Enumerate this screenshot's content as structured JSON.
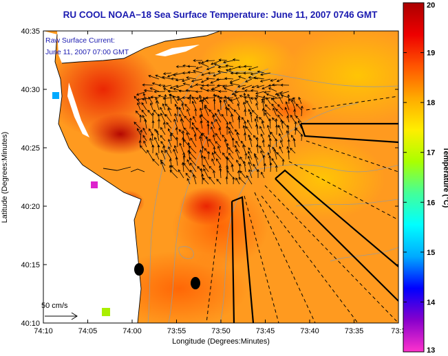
{
  "title": "RU COOL  NOAA−18  Sea Surface Temperature:  June 11, 2007 0746 GMT",
  "current_inset": {
    "line1": "Raw Surface Current:",
    "line2": "June 11, 2007 07:00 GMT"
  },
  "scale_label": "50 cm/s",
  "axes": {
    "xlabel": "Longitude (Degrees:Minutes)",
    "ylabel": "Latitude (Degrees:Minutes)",
    "x_ticks": [
      "74:10",
      "74:05",
      "74:00",
      "73:55",
      "73:50",
      "73:45",
      "73:40",
      "73:35",
      "73:3"
    ],
    "y_ticks": [
      "40:35",
      "40:30",
      "40:25",
      "40:20",
      "40:15",
      "40:10"
    ]
  },
  "colorbar": {
    "label": "Temperature (°C)",
    "min": 13,
    "max": 20,
    "ticks": [
      "20",
      "19",
      "18",
      "17",
      "16",
      "15",
      "14",
      "13"
    ],
    "colors": [
      "#ff33cc",
      "#8800cc",
      "#0000ff",
      "#00aaff",
      "#00ffff",
      "#44ff99",
      "#aaff00",
      "#ffee00",
      "#ffaa00",
      "#ff5500",
      "#ee0000",
      "#aa0000"
    ]
  },
  "colors": {
    "title": "#1a1ab0",
    "land": "#ffffff",
    "ocean_base": "#ff9a1f",
    "contour": "#999999",
    "vector": "#000000"
  }
}
